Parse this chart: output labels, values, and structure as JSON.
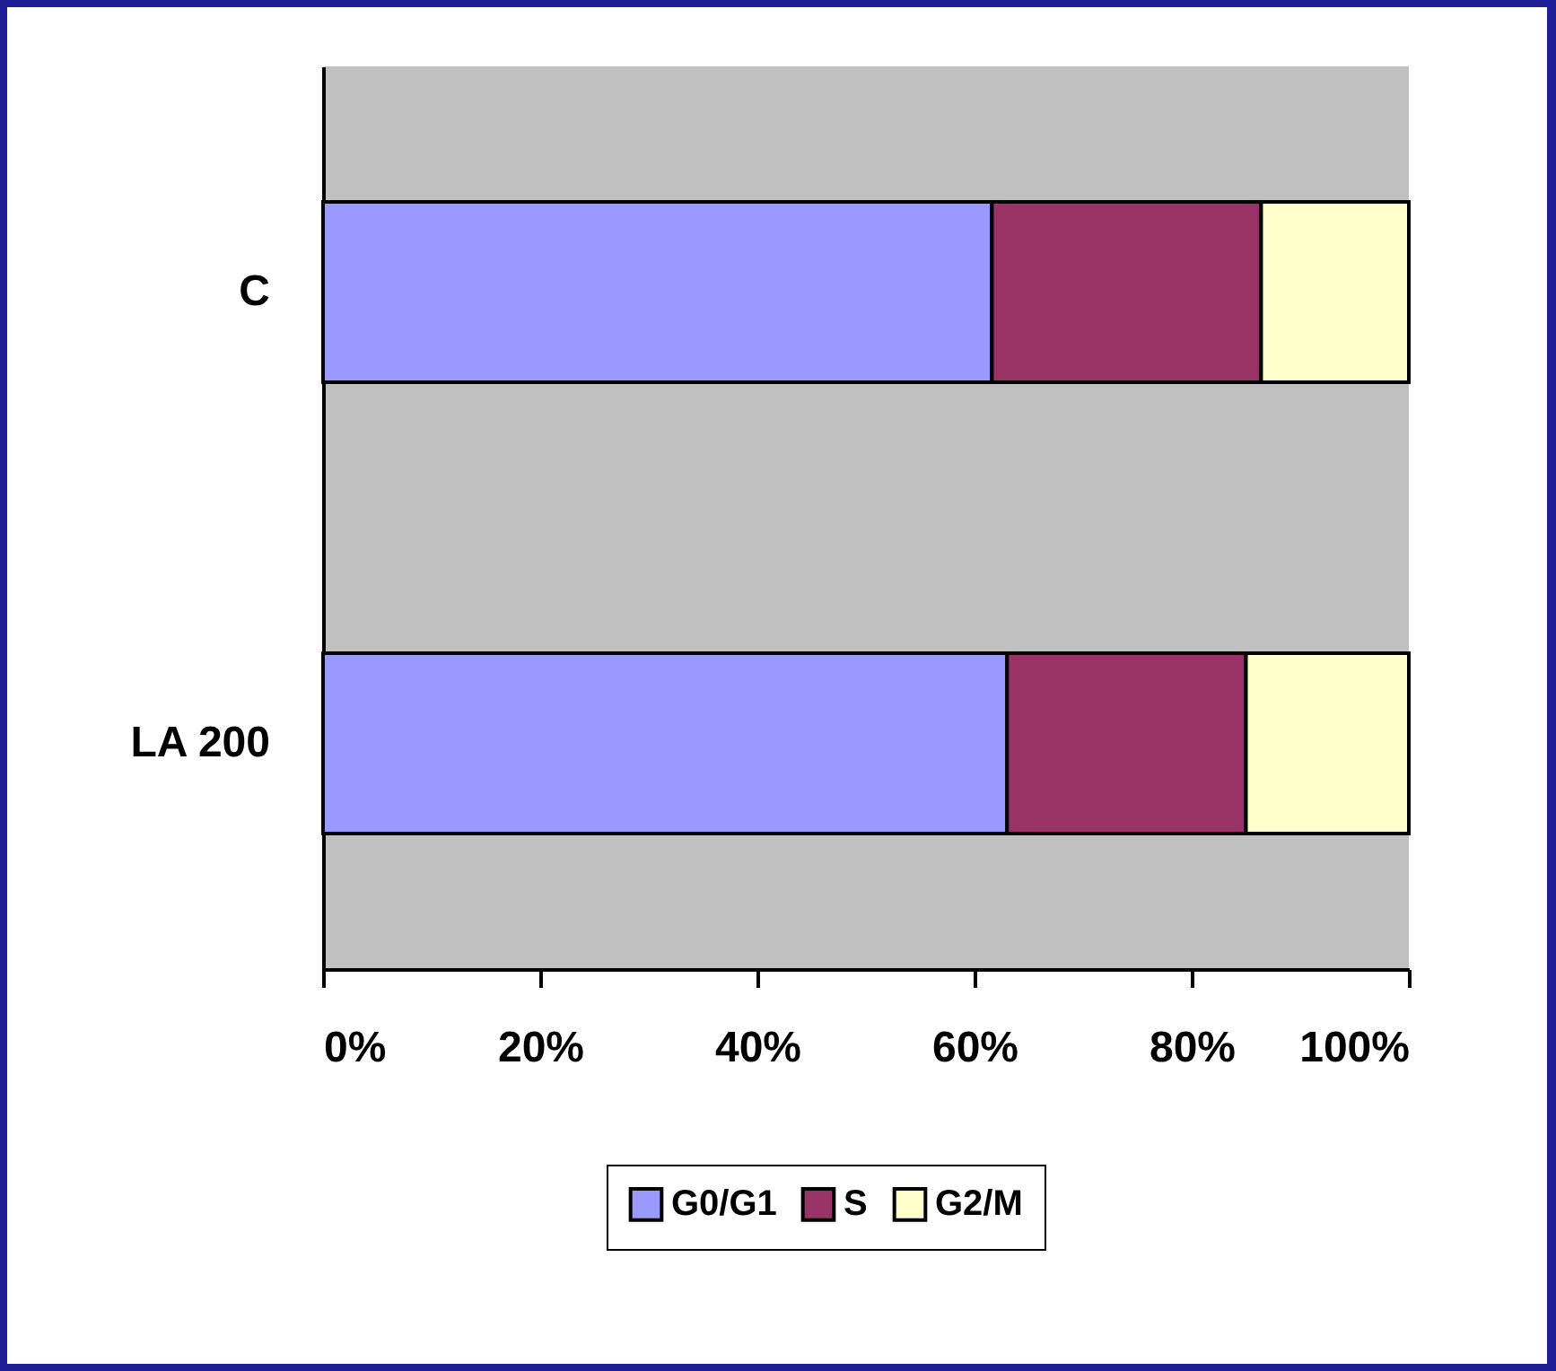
{
  "chart_data": {
    "type": "bar",
    "orientation": "horizontal",
    "stacked": true,
    "categories": [
      "C",
      "LA 200"
    ],
    "series": [
      {
        "name": "G0/G1",
        "color": "#9999ff",
        "values": [
          61.6,
          63
        ]
      },
      {
        "name": "S",
        "color": "#993366",
        "values": [
          24.8,
          22
        ]
      },
      {
        "name": "G2/M",
        "color": "#ffffcc",
        "values": [
          13.6,
          15
        ]
      }
    ],
    "xlim": [
      0,
      100
    ],
    "xticks": [
      {
        "value": 0,
        "label": "0%"
      },
      {
        "value": 20,
        "label": "20%"
      },
      {
        "value": 40,
        "label": "40%"
      },
      {
        "value": 60,
        "label": "60%"
      },
      {
        "value": 80,
        "label": "80%"
      },
      {
        "value": 100,
        "label": "100%"
      }
    ],
    "grid": false,
    "legend": "bottom"
  }
}
